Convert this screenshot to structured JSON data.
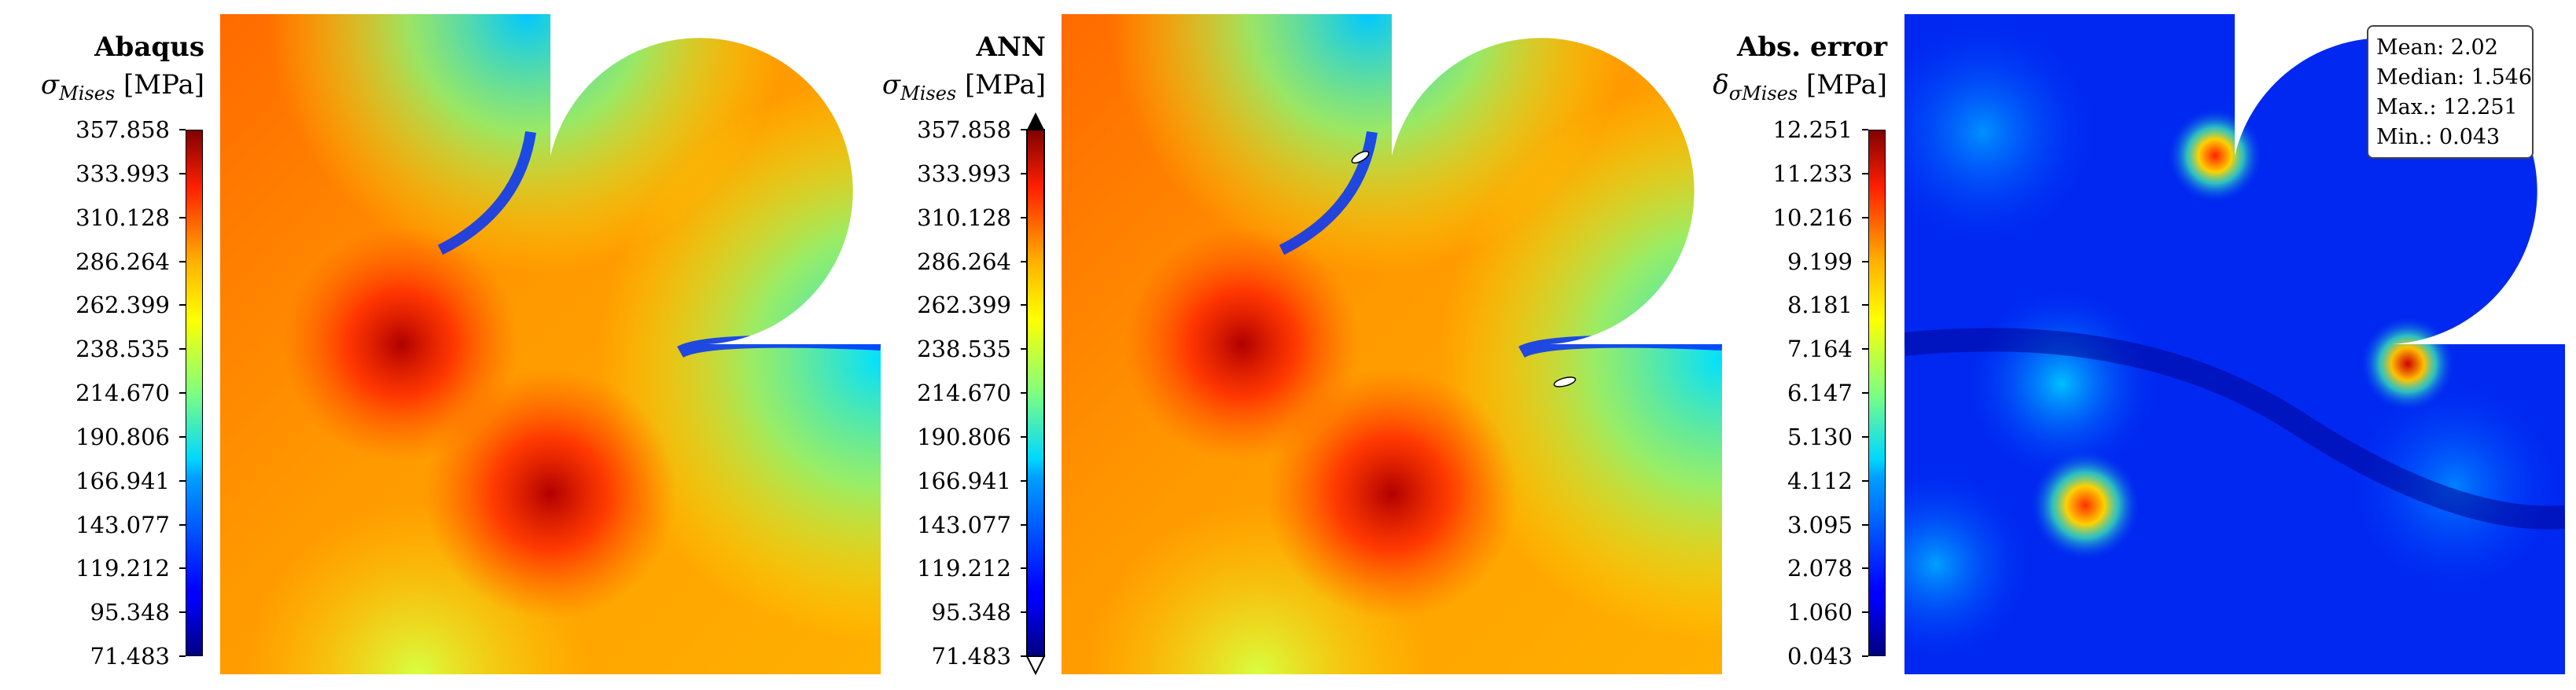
{
  "panels": [
    {
      "title": "Abaqus",
      "quantity_symbol": "σ",
      "quantity_sub": "Mises",
      "quantity_unit": " [MPa]",
      "ticks": [
        "357.858",
        "333.993",
        "310.128",
        "286.264",
        "262.399",
        "238.535",
        "214.670",
        "190.806",
        "166.941",
        "143.077",
        "119.212",
        "95.348",
        "71.483"
      ],
      "extend_arrows": false
    },
    {
      "title": "ANN",
      "quantity_symbol": "σ",
      "quantity_sub": "Mises",
      "quantity_unit": " [MPa]",
      "ticks": [
        "357.858",
        "333.993",
        "310.128",
        "286.264",
        "262.399",
        "238.535",
        "214.670",
        "190.806",
        "166.941",
        "143.077",
        "119.212",
        "95.348",
        "71.483"
      ],
      "extend_arrows": true
    },
    {
      "title": "Abs. error",
      "quantity_symbol": "δ",
      "quantity_sub": "σMises",
      "quantity_unit": " [MPa]",
      "ticks": [
        "12.251",
        "11.233",
        "10.216",
        "9.199",
        "8.181",
        "7.164",
        "6.147",
        "5.130",
        "4.112",
        "3.095",
        "2.078",
        "1.060",
        "0.043"
      ],
      "extend_arrows": false
    }
  ],
  "stats": {
    "mean": "Mean: 2.02",
    "median": "Median: 1.546",
    "max": "Max.: 12.251",
    "min": "Min.: 0.043"
  },
  "colormap": "jet",
  "chart_data": [
    {
      "type": "heatmap",
      "title": "Abaqus",
      "colorbar_label": "σMises [MPa]",
      "colorbar_range": [
        71.483,
        357.858
      ],
      "colorbar_ticks": [
        357.858,
        333.993,
        310.128,
        286.264,
        262.399,
        238.535,
        214.67,
        190.806,
        166.941,
        143.077,
        119.212,
        95.348,
        71.483
      ]
    },
    {
      "type": "heatmap",
      "title": "ANN",
      "colorbar_label": "σMises [MPa]",
      "colorbar_range": [
        71.483,
        357.858
      ],
      "colorbar_ticks": [
        357.858,
        333.993,
        310.128,
        286.264,
        262.399,
        238.535,
        214.67,
        190.806,
        166.941,
        143.077,
        119.212,
        95.348,
        71.483
      ]
    },
    {
      "type": "heatmap",
      "title": "Abs. error",
      "colorbar_label": "δσMises [MPa]",
      "colorbar_range": [
        0.043,
        12.251
      ],
      "colorbar_ticks": [
        12.251,
        11.233,
        10.216,
        9.199,
        8.181,
        7.164,
        6.147,
        5.13,
        4.112,
        3.095,
        2.078,
        1.06,
        0.043
      ],
      "stats": {
        "mean": 2.02,
        "median": 1.546,
        "max": 12.251,
        "min": 0.043
      }
    }
  ]
}
